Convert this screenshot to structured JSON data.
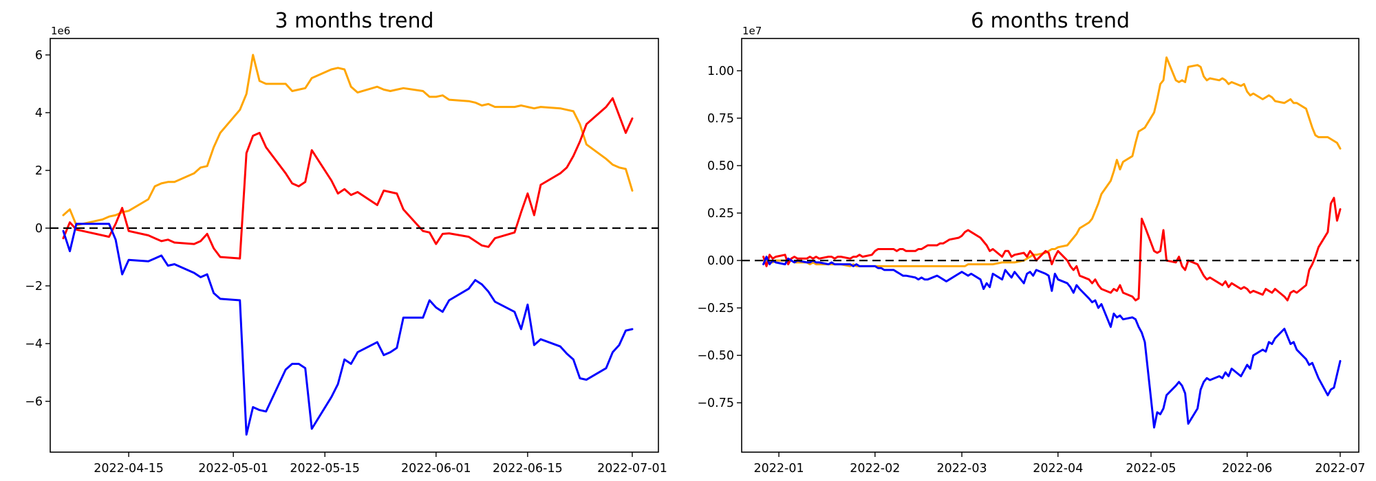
{
  "figure": {
    "background": "#ffffff",
    "frame_color": "#000000",
    "text_color": "#000000"
  },
  "chart_data": [
    {
      "type": "line",
      "title": "3 months trend",
      "y_offset_label": "1e6",
      "unit": 1000000,
      "grid": false,
      "legend": "none",
      "zero_line": {
        "style": "dashed",
        "color": "#000000",
        "y": 0
      },
      "xlim": [
        "2022-04-03",
        "2022-07-05"
      ],
      "ylim": [
        -7.76,
        6.57
      ],
      "yticks": [
        6,
        4,
        2,
        0,
        -2,
        -4,
        -6
      ],
      "ytick_labels": [
        "6",
        "4",
        "2",
        "0",
        "−2",
        "−4",
        "−6"
      ],
      "xticks": [
        "2022-04-15",
        "2022-05-01",
        "2022-05-15",
        "2022-06-01",
        "2022-06-15",
        "2022-07-01"
      ],
      "xtick_labels": [
        "2022-04-15",
        "2022-05-01",
        "2022-05-15",
        "2022-06-01",
        "2022-06-15",
        "2022-07-01"
      ],
      "x": [
        "2022-04-05",
        "2022-04-06",
        "2022-04-07",
        "2022-04-08",
        "2022-04-11",
        "2022-04-12",
        "2022-04-13",
        "2022-04-14",
        "2022-04-15",
        "2022-04-18",
        "2022-04-19",
        "2022-04-20",
        "2022-04-21",
        "2022-04-22",
        "2022-04-25",
        "2022-04-26",
        "2022-04-27",
        "2022-04-28",
        "2022-04-29",
        "2022-05-02",
        "2022-05-03",
        "2022-05-04",
        "2022-05-05",
        "2022-05-06",
        "2022-05-09",
        "2022-05-10",
        "2022-05-11",
        "2022-05-12",
        "2022-05-13",
        "2022-05-16",
        "2022-05-17",
        "2022-05-18",
        "2022-05-19",
        "2022-05-20",
        "2022-05-23",
        "2022-05-24",
        "2022-05-25",
        "2022-05-26",
        "2022-05-27",
        "2022-05-30",
        "2022-05-31",
        "2022-06-01",
        "2022-06-02",
        "2022-06-03",
        "2022-06-06",
        "2022-06-07",
        "2022-06-08",
        "2022-06-09",
        "2022-06-10",
        "2022-06-13",
        "2022-06-14",
        "2022-06-15",
        "2022-06-16",
        "2022-06-17",
        "2022-06-20",
        "2022-06-21",
        "2022-06-22",
        "2022-06-23",
        "2022-06-24",
        "2022-06-27",
        "2022-06-28",
        "2022-06-29",
        "2022-06-30",
        "2022-07-01"
      ],
      "series": [
        {
          "name": "orange-line",
          "color": "#ffa500",
          "values": [
            0.45,
            0.65,
            0.1,
            0.15,
            0.3,
            0.4,
            0.45,
            0.55,
            0.6,
            1.0,
            1.45,
            1.55,
            1.6,
            1.6,
            1.9,
            2.1,
            2.15,
            2.8,
            3.3,
            4.1,
            4.65,
            6.0,
            5.1,
            5.0,
            5.0,
            4.75,
            4.8,
            4.85,
            5.2,
            5.5,
            5.55,
            5.5,
            4.9,
            4.7,
            4.9,
            4.8,
            4.75,
            4.8,
            4.85,
            4.75,
            4.55,
            4.55,
            4.6,
            4.45,
            4.4,
            4.35,
            4.25,
            4.3,
            4.2,
            4.2,
            4.25,
            4.2,
            4.15,
            4.2,
            4.15,
            4.1,
            4.05,
            3.6,
            2.9,
            2.4,
            2.2,
            2.1,
            2.05,
            1.3
          ]
        },
        {
          "name": "red-line",
          "color": "#ff0000",
          "values": [
            -0.35,
            0.2,
            -0.05,
            -0.1,
            -0.25,
            -0.3,
            0.15,
            0.7,
            -0.1,
            -0.25,
            -0.35,
            -0.45,
            -0.4,
            -0.5,
            -0.55,
            -0.45,
            -0.2,
            -0.7,
            -1.0,
            -1.05,
            2.6,
            3.2,
            3.3,
            2.8,
            1.9,
            1.55,
            1.45,
            1.6,
            2.7,
            1.65,
            1.2,
            1.35,
            1.15,
            1.25,
            0.8,
            1.3,
            1.25,
            1.2,
            0.65,
            -0.1,
            -0.15,
            -0.55,
            -0.2,
            -0.18,
            -0.3,
            -0.45,
            -0.6,
            -0.65,
            -0.35,
            -0.15,
            0.55,
            1.2,
            0.45,
            1.5,
            1.9,
            2.1,
            2.5,
            3.0,
            3.6,
            4.2,
            4.5,
            3.9,
            3.3,
            3.8
          ]
        },
        {
          "name": "blue-line",
          "color": "#0000ff",
          "values": [
            -0.1,
            -0.8,
            0.15,
            0.15,
            0.15,
            0.15,
            -0.4,
            -1.6,
            -1.1,
            -1.15,
            -1.05,
            -0.95,
            -1.3,
            -1.25,
            -1.55,
            -1.7,
            -1.6,
            -2.25,
            -2.45,
            -2.5,
            -7.15,
            -6.2,
            -6.3,
            -6.35,
            -4.9,
            -4.7,
            -4.7,
            -4.85,
            -6.95,
            -5.85,
            -5.4,
            -4.55,
            -4.7,
            -4.3,
            -3.95,
            -4.4,
            -4.3,
            -4.15,
            -3.1,
            -3.1,
            -2.5,
            -2.75,
            -2.9,
            -2.5,
            -2.1,
            -1.8,
            -1.95,
            -2.2,
            -2.55,
            -2.9,
            -3.5,
            -2.65,
            -4.05,
            -3.85,
            -4.1,
            -4.35,
            -4.55,
            -5.2,
            -5.25,
            -4.85,
            -4.3,
            -4.05,
            -3.55,
            -3.5
          ]
        }
      ]
    },
    {
      "type": "line",
      "title": "6 months trend",
      "y_offset_label": "1e7",
      "unit": 10000000,
      "grid": false,
      "legend": "none",
      "zero_line": {
        "style": "dashed",
        "color": "#000000",
        "y": 0
      },
      "xlim": [
        "2021-12-20",
        "2022-07-07"
      ],
      "ylim": [
        -1.01,
        1.17
      ],
      "yticks": [
        1.0,
        0.75,
        0.5,
        0.25,
        0.0,
        -0.25,
        -0.5,
        -0.75
      ],
      "ytick_labels": [
        "1.00",
        "0.75",
        "0.50",
        "0.25",
        "0.00",
        "−0.25",
        "−0.50",
        "−0.75"
      ],
      "xticks": [
        "2022-01-01",
        "2022-02-01",
        "2022-03-01",
        "2022-04-01",
        "2022-05-01",
        "2022-06-01",
        "2022-07-01"
      ],
      "xtick_labels": [
        "2022-01",
        "2022-02",
        "2022-03",
        "2022-04",
        "2022-05",
        "2022-06",
        "2022-07"
      ],
      "x": [
        "2021-12-27",
        "2021-12-28",
        "2021-12-29",
        "2021-12-30",
        "2021-12-31",
        "2022-01-03",
        "2022-01-04",
        "2022-01-05",
        "2022-01-06",
        "2022-01-07",
        "2022-01-10",
        "2022-01-11",
        "2022-01-12",
        "2022-01-13",
        "2022-01-14",
        "2022-01-17",
        "2022-01-18",
        "2022-01-19",
        "2022-01-20",
        "2022-01-21",
        "2022-01-24",
        "2022-01-25",
        "2022-01-26",
        "2022-01-27",
        "2022-01-28",
        "2022-01-31",
        "2022-02-01",
        "2022-02-02",
        "2022-02-03",
        "2022-02-04",
        "2022-02-07",
        "2022-02-08",
        "2022-02-09",
        "2022-02-10",
        "2022-02-11",
        "2022-02-14",
        "2022-02-15",
        "2022-02-16",
        "2022-02-17",
        "2022-02-18",
        "2022-02-21",
        "2022-02-22",
        "2022-02-23",
        "2022-02-24",
        "2022-02-25",
        "2022-02-28",
        "2022-03-01",
        "2022-03-02",
        "2022-03-03",
        "2022-03-04",
        "2022-03-07",
        "2022-03-08",
        "2022-03-09",
        "2022-03-10",
        "2022-03-11",
        "2022-03-14",
        "2022-03-15",
        "2022-03-16",
        "2022-03-17",
        "2022-03-18",
        "2022-03-21",
        "2022-03-22",
        "2022-03-23",
        "2022-03-24",
        "2022-03-25",
        "2022-03-28",
        "2022-03-29",
        "2022-03-30",
        "2022-03-31",
        "2022-04-01",
        "2022-04-04",
        "2022-04-05",
        "2022-04-06",
        "2022-04-07",
        "2022-04-08",
        "2022-04-11",
        "2022-04-12",
        "2022-04-13",
        "2022-04-14",
        "2022-04-15",
        "2022-04-18",
        "2022-04-19",
        "2022-04-20",
        "2022-04-21",
        "2022-04-22",
        "2022-04-25",
        "2022-04-26",
        "2022-04-27",
        "2022-04-28",
        "2022-04-29",
        "2022-05-02",
        "2022-05-03",
        "2022-05-04",
        "2022-05-05",
        "2022-05-06",
        "2022-05-09",
        "2022-05-10",
        "2022-05-11",
        "2022-05-12",
        "2022-05-13",
        "2022-05-16",
        "2022-05-17",
        "2022-05-18",
        "2022-05-19",
        "2022-05-20",
        "2022-05-23",
        "2022-05-24",
        "2022-05-25",
        "2022-05-26",
        "2022-05-27",
        "2022-05-30",
        "2022-05-31",
        "2022-06-01",
        "2022-06-02",
        "2022-06-03",
        "2022-06-06",
        "2022-06-07",
        "2022-06-08",
        "2022-06-09",
        "2022-06-10",
        "2022-06-13",
        "2022-06-14",
        "2022-06-15",
        "2022-06-16",
        "2022-06-17",
        "2022-06-20",
        "2022-06-21",
        "2022-06-22",
        "2022-06-23",
        "2022-06-24",
        "2022-06-27",
        "2022-06-28",
        "2022-06-29",
        "2022-06-30",
        "2022-07-01"
      ],
      "series": [
        {
          "name": "orange-line",
          "color": "#ffa500",
          "values": [
            0.0,
            0.0,
            -0.01,
            -0.01,
            0.0,
            0.0,
            -0.01,
            0.0,
            -0.01,
            -0.01,
            -0.01,
            -0.02,
            -0.01,
            -0.02,
            -0.02,
            -0.02,
            -0.02,
            -0.02,
            -0.02,
            -0.02,
            -0.03,
            -0.02,
            -0.03,
            -0.03,
            -0.03,
            -0.03,
            -0.03,
            -0.03,
            -0.03,
            -0.03,
            -0.03,
            -0.03,
            -0.03,
            -0.03,
            -0.03,
            -0.03,
            -0.03,
            -0.03,
            -0.03,
            -0.03,
            -0.03,
            -0.03,
            -0.03,
            -0.03,
            -0.03,
            -0.03,
            -0.03,
            -0.03,
            -0.02,
            -0.02,
            -0.02,
            -0.02,
            -0.02,
            -0.02,
            -0.02,
            -0.01,
            -0.01,
            -0.01,
            -0.01,
            -0.01,
            0.0,
            0.01,
            0.02,
            0.03,
            0.03,
            0.04,
            0.05,
            0.06,
            0.06,
            0.07,
            0.08,
            0.1,
            0.12,
            0.14,
            0.17,
            0.2,
            0.22,
            0.26,
            0.3,
            0.35,
            0.42,
            0.47,
            0.53,
            0.48,
            0.52,
            0.55,
            0.62,
            0.68,
            0.69,
            0.7,
            0.78,
            0.85,
            0.93,
            0.95,
            1.07,
            0.95,
            0.94,
            0.95,
            0.94,
            1.02,
            1.03,
            1.02,
            0.97,
            0.95,
            0.96,
            0.95,
            0.96,
            0.95,
            0.93,
            0.94,
            0.92,
            0.93,
            0.89,
            0.87,
            0.88,
            0.85,
            0.86,
            0.87,
            0.86,
            0.84,
            0.83,
            0.84,
            0.85,
            0.83,
            0.83,
            0.8,
            0.75,
            0.7,
            0.66,
            0.65,
            0.65,
            0.64,
            0.63,
            0.62,
            0.59
          ]
        },
        {
          "name": "red-line",
          "color": "#ff0000",
          "values": [
            0.02,
            -0.03,
            0.03,
            0.01,
            0.02,
            0.03,
            -0.02,
            0.01,
            0.02,
            0.01,
            0.01,
            0.02,
            0.01,
            0.02,
            0.01,
            0.02,
            0.02,
            0.01,
            0.02,
            0.02,
            0.01,
            0.02,
            0.02,
            0.03,
            0.02,
            0.03,
            0.05,
            0.06,
            0.06,
            0.06,
            0.06,
            0.05,
            0.06,
            0.06,
            0.05,
            0.05,
            0.06,
            0.06,
            0.07,
            0.08,
            0.08,
            0.09,
            0.09,
            0.1,
            0.11,
            0.12,
            0.13,
            0.15,
            0.16,
            0.15,
            0.12,
            0.1,
            0.08,
            0.05,
            0.06,
            0.02,
            0.05,
            0.05,
            0.02,
            0.03,
            0.04,
            0.02,
            0.05,
            0.03,
            0.0,
            0.05,
            0.04,
            -0.02,
            0.02,
            0.05,
            0.0,
            -0.03,
            -0.05,
            -0.03,
            -0.08,
            -0.1,
            -0.12,
            -0.1,
            -0.13,
            -0.15,
            -0.17,
            -0.15,
            -0.16,
            -0.13,
            -0.17,
            -0.19,
            -0.21,
            -0.2,
            0.22,
            0.18,
            0.05,
            0.04,
            0.05,
            0.16,
            0.0,
            -0.01,
            0.02,
            -0.03,
            -0.05,
            0.0,
            -0.02,
            -0.05,
            -0.08,
            -0.1,
            -0.09,
            -0.12,
            -0.13,
            -0.11,
            -0.14,
            -0.12,
            -0.15,
            -0.14,
            -0.15,
            -0.17,
            -0.16,
            -0.18,
            -0.15,
            -0.16,
            -0.17,
            -0.15,
            -0.19,
            -0.21,
            -0.17,
            -0.16,
            -0.17,
            -0.13,
            -0.05,
            -0.02,
            0.02,
            0.07,
            0.15,
            0.3,
            0.33,
            0.21,
            0.27
          ]
        },
        {
          "name": "blue-line",
          "color": "#0000ff",
          "values": [
            -0.02,
            0.02,
            -0.02,
            0.0,
            -0.01,
            -0.02,
            0.01,
            0.0,
            -0.01,
            0.0,
            -0.01,
            -0.01,
            0.0,
            -0.01,
            -0.01,
            -0.02,
            -0.01,
            -0.02,
            -0.02,
            -0.02,
            -0.02,
            -0.03,
            -0.02,
            -0.03,
            -0.03,
            -0.03,
            -0.03,
            -0.04,
            -0.04,
            -0.05,
            -0.05,
            -0.06,
            -0.07,
            -0.08,
            -0.08,
            -0.09,
            -0.1,
            -0.09,
            -0.1,
            -0.1,
            -0.08,
            -0.09,
            -0.1,
            -0.11,
            -0.1,
            -0.07,
            -0.06,
            -0.07,
            -0.08,
            -0.07,
            -0.1,
            -0.15,
            -0.12,
            -0.14,
            -0.07,
            -0.1,
            -0.05,
            -0.07,
            -0.09,
            -0.06,
            -0.12,
            -0.07,
            -0.06,
            -0.08,
            -0.05,
            -0.07,
            -0.08,
            -0.16,
            -0.07,
            -0.1,
            -0.12,
            -0.14,
            -0.17,
            -0.13,
            -0.15,
            -0.2,
            -0.22,
            -0.21,
            -0.25,
            -0.23,
            -0.35,
            -0.28,
            -0.3,
            -0.29,
            -0.31,
            -0.3,
            -0.31,
            -0.35,
            -0.38,
            -0.43,
            -0.88,
            -0.8,
            -0.81,
            -0.78,
            -0.71,
            -0.66,
            -0.64,
            -0.66,
            -0.7,
            -0.86,
            -0.78,
            -0.68,
            -0.64,
            -0.62,
            -0.63,
            -0.61,
            -0.62,
            -0.59,
            -0.61,
            -0.57,
            -0.61,
            -0.58,
            -0.55,
            -0.57,
            -0.5,
            -0.47,
            -0.48,
            -0.43,
            -0.44,
            -0.41,
            -0.36,
            -0.4,
            -0.44,
            -0.43,
            -0.47,
            -0.52,
            -0.55,
            -0.54,
            -0.58,
            -0.62,
            -0.71,
            -0.68,
            -0.67,
            -0.6,
            -0.53
          ]
        }
      ]
    }
  ]
}
